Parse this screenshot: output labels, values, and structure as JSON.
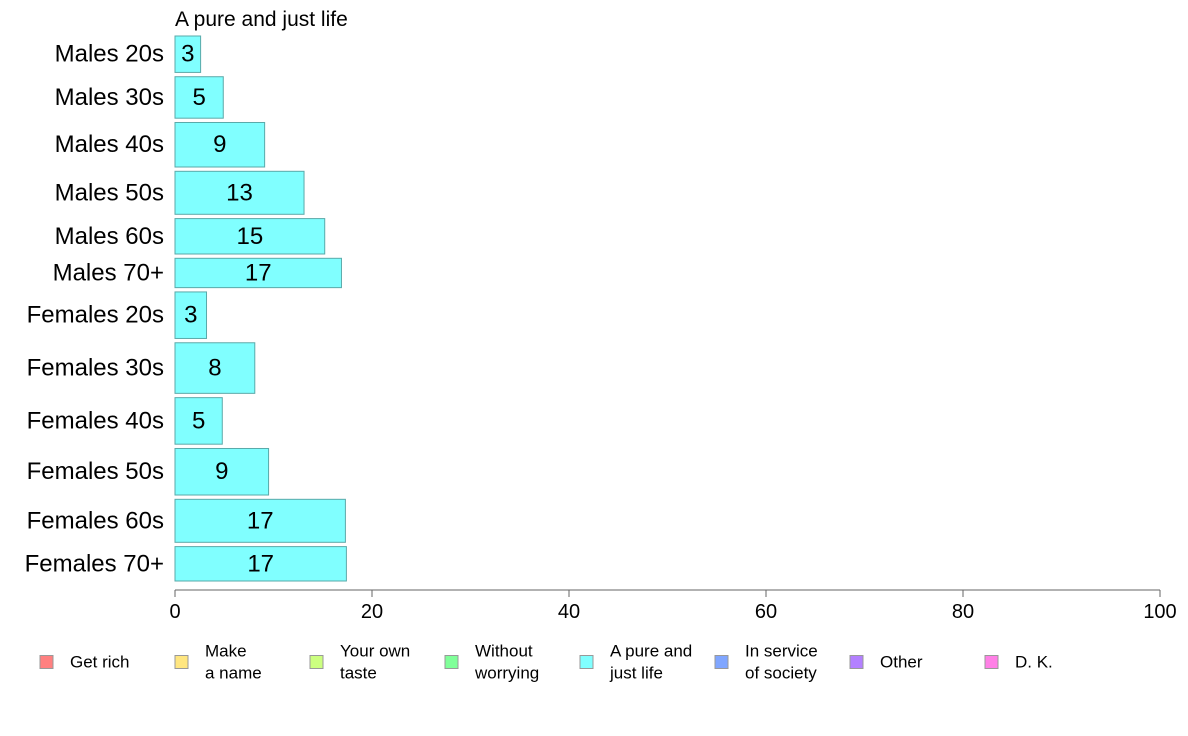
{
  "chart_data": {
    "type": "bar",
    "orientation": "horizontal",
    "title": "A pure and just life",
    "xlim": [
      0,
      100
    ],
    "xticks": [
      0,
      20,
      40,
      60,
      80,
      100
    ],
    "grid": false,
    "legend_position": "bottom",
    "bar_color": "#80FFFF",
    "bar_stroke": "#5AA9A9",
    "categories": [
      "Males 20s",
      "Males 30s",
      "Males 40s",
      "Males 50s",
      "Males 60s",
      "Males 70+",
      "Females 20s",
      "Females 30s",
      "Females 40s",
      "Females 50s",
      "Females 60s",
      "Females 70+"
    ],
    "values": [
      2.6,
      4.9,
      9.1,
      13.1,
      15.2,
      16.9,
      3.2,
      8.1,
      4.8,
      9.5,
      17.3,
      17.4
    ],
    "value_labels": [
      "3",
      "5",
      "9",
      "13",
      "15",
      "17",
      "3",
      "8",
      "5",
      "9",
      "17",
      "17"
    ],
    "bar_weights": [
      0.72,
      0.82,
      0.88,
      0.85,
      0.7,
      0.58,
      0.92,
      1.0,
      0.92,
      0.92,
      0.85,
      0.68
    ],
    "legend": [
      {
        "lines": [
          "Get rich"
        ],
        "color": "#FF8080"
      },
      {
        "lines": [
          "Make",
          "a name"
        ],
        "color": "#FFE680"
      },
      {
        "lines": [
          "Your own",
          "taste"
        ],
        "color": "#CCFF80"
      },
      {
        "lines": [
          "Without",
          "worrying"
        ],
        "color": "#80FF99"
      },
      {
        "lines": [
          "A pure and",
          "just life"
        ],
        "color": "#80FFFF"
      },
      {
        "lines": [
          "In service",
          "of society"
        ],
        "color": "#80A6FF"
      },
      {
        "lines": [
          "Other"
        ],
        "color": "#B380FF"
      },
      {
        "lines": [
          "D. K."
        ],
        "color": "#FF80E6"
      }
    ]
  }
}
